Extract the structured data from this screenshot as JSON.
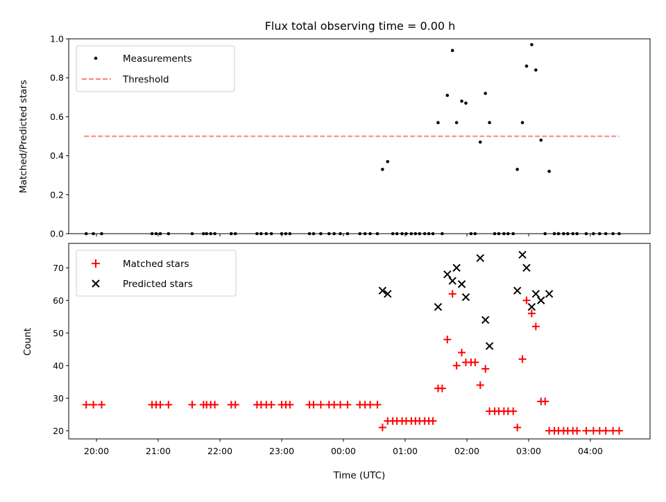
{
  "chart_data": [
    {
      "type": "scatter",
      "title": "Flux total observing time = 0.00 h",
      "ylabel": "Matched/Predicted stars",
      "xlabel": "",
      "xlim": [
        "19:33",
        "04:58"
      ],
      "ylim": [
        0,
        1.0
      ],
      "yticks": [
        "0.0",
        "0.2",
        "0.4",
        "0.6",
        "0.8",
        "1.0"
      ],
      "legend": "top-left",
      "series": [
        {
          "name": "Measurements",
          "color": "#000000",
          "marker": "dot",
          "points": [
            [
              "19:50",
              0
            ],
            [
              "19:57",
              0
            ],
            [
              "20:05",
              0
            ],
            [
              "20:54",
              0
            ],
            [
              "20:58",
              0
            ],
            [
              "21:02",
              0
            ],
            [
              "21:10",
              0
            ],
            [
              "21:33",
              0
            ],
            [
              "21:44",
              0
            ],
            [
              "21:47",
              0
            ],
            [
              "21:51",
              0
            ],
            [
              "21:55",
              0
            ],
            [
              "22:11",
              0
            ],
            [
              "22:15",
              0
            ],
            [
              "22:36",
              0
            ],
            [
              "22:40",
              0
            ],
            [
              "22:45",
              0
            ],
            [
              "22:50",
              0
            ],
            [
              "23:00",
              0
            ],
            [
              "23:04",
              0
            ],
            [
              "23:08",
              0
            ],
            [
              "23:27",
              0
            ],
            [
              "23:31",
              0
            ],
            [
              "23:38",
              0
            ],
            [
              "23:46",
              0
            ],
            [
              "23:51",
              0
            ],
            [
              "23:57",
              0
            ],
            [
              "00:04",
              0
            ],
            [
              "00:16",
              0
            ],
            [
              "00:21",
              0
            ],
            [
              "00:26",
              0
            ],
            [
              "00:33",
              0
            ],
            [
              "00:38",
              0.33
            ],
            [
              "00:43",
              0.37
            ],
            [
              "00:48",
              0
            ],
            [
              "00:52",
              0
            ],
            [
              "00:57",
              0
            ],
            [
              "01:01",
              0
            ],
            [
              "01:06",
              0
            ],
            [
              "01:10",
              0
            ],
            [
              "01:14",
              0
            ],
            [
              "01:19",
              0
            ],
            [
              "01:23",
              0
            ],
            [
              "01:27",
              0
            ],
            [
              "01:32",
              0.57
            ],
            [
              "01:36",
              0
            ],
            [
              "01:41",
              0.71
            ],
            [
              "01:46",
              0.94
            ],
            [
              "01:50",
              0.57
            ],
            [
              "01:55",
              0.68
            ],
            [
              "01:59",
              0.67
            ],
            [
              "02:04",
              0
            ],
            [
              "02:08",
              0
            ],
            [
              "02:13",
              0.47
            ],
            [
              "02:18",
              0.72
            ],
            [
              "02:22",
              0.57
            ],
            [
              "02:27",
              0
            ],
            [
              "02:31",
              0
            ],
            [
              "02:36",
              0
            ],
            [
              "02:40",
              0
            ],
            [
              "02:45",
              0
            ],
            [
              "02:49",
              0.33
            ],
            [
              "02:54",
              0.57
            ],
            [
              "02:58",
              0.86
            ],
            [
              "03:03",
              0.97
            ],
            [
              "03:07",
              0.84
            ],
            [
              "03:12",
              0.48
            ],
            [
              "03:16",
              0
            ],
            [
              "03:20",
              0.32
            ],
            [
              "03:25",
              0
            ],
            [
              "03:29",
              0
            ],
            [
              "03:34",
              0
            ],
            [
              "03:38",
              0
            ],
            [
              "03:43",
              0
            ],
            [
              "03:47",
              0
            ],
            [
              "03:56",
              0
            ],
            [
              "04:03",
              0
            ],
            [
              "04:09",
              0
            ],
            [
              "04:15",
              0
            ],
            [
              "04:22",
              0
            ],
            [
              "04:28",
              0
            ]
          ]
        },
        {
          "name": "Threshold",
          "color": "#ff7f7f",
          "style": "dashed",
          "points": [
            [
              "19:48",
              0.5
            ],
            [
              "04:28",
              0.5
            ]
          ]
        }
      ]
    },
    {
      "type": "scatter",
      "title": "",
      "xlabel": "Time (UTC)",
      "ylabel": "Count",
      "xlim": [
        "19:33",
        "04:58"
      ],
      "ylim": [
        17.5,
        77.5
      ],
      "yticks": [
        "20",
        "30",
        "40",
        "50",
        "60",
        "70"
      ],
      "xticks": [
        "20:00",
        "21:00",
        "22:00",
        "23:00",
        "00:00",
        "01:00",
        "02:00",
        "03:00",
        "04:00"
      ],
      "legend": "top-left",
      "series": [
        {
          "name": "Matched stars",
          "color": "#ff0000",
          "marker": "plus",
          "points": [
            [
              "19:50",
              28
            ],
            [
              "19:57",
              28
            ],
            [
              "20:05",
              28
            ],
            [
              "20:54",
              28
            ],
            [
              "20:58",
              28
            ],
            [
              "21:02",
              28
            ],
            [
              "21:10",
              28
            ],
            [
              "21:33",
              28
            ],
            [
              "21:44",
              28
            ],
            [
              "21:47",
              28
            ],
            [
              "21:51",
              28
            ],
            [
              "21:55",
              28
            ],
            [
              "22:11",
              28
            ],
            [
              "22:15",
              28
            ],
            [
              "22:36",
              28
            ],
            [
              "22:40",
              28
            ],
            [
              "22:45",
              28
            ],
            [
              "22:50",
              28
            ],
            [
              "23:00",
              28
            ],
            [
              "23:04",
              28
            ],
            [
              "23:08",
              28
            ],
            [
              "23:27",
              28
            ],
            [
              "23:31",
              28
            ],
            [
              "23:38",
              28
            ],
            [
              "23:46",
              28
            ],
            [
              "23:51",
              28
            ],
            [
              "23:57",
              28
            ],
            [
              "00:04",
              28
            ],
            [
              "00:16",
              28
            ],
            [
              "00:21",
              28
            ],
            [
              "00:26",
              28
            ],
            [
              "00:33",
              28
            ],
            [
              "00:38",
              21
            ],
            [
              "00:43",
              23
            ],
            [
              "00:48",
              23
            ],
            [
              "00:52",
              23
            ],
            [
              "00:57",
              23
            ],
            [
              "01:01",
              23
            ],
            [
              "01:06",
              23
            ],
            [
              "01:10",
              23
            ],
            [
              "01:14",
              23
            ],
            [
              "01:19",
              23
            ],
            [
              "01:23",
              23
            ],
            [
              "01:27",
              23
            ],
            [
              "01:32",
              33
            ],
            [
              "01:36",
              33
            ],
            [
              "01:41",
              48
            ],
            [
              "01:46",
              62
            ],
            [
              "01:50",
              40
            ],
            [
              "01:55",
              44
            ],
            [
              "01:59",
              41
            ],
            [
              "02:04",
              41
            ],
            [
              "02:08",
              41
            ],
            [
              "02:13",
              34
            ],
            [
              "02:18",
              39
            ],
            [
              "02:22",
              26
            ],
            [
              "02:27",
              26
            ],
            [
              "02:31",
              26
            ],
            [
              "02:36",
              26
            ],
            [
              "02:40",
              26
            ],
            [
              "02:45",
              26
            ],
            [
              "02:49",
              21
            ],
            [
              "02:54",
              42
            ],
            [
              "02:58",
              60
            ],
            [
              "03:03",
              56
            ],
            [
              "03:07",
              52
            ],
            [
              "03:12",
              29
            ],
            [
              "03:16",
              29
            ],
            [
              "03:20",
              20
            ],
            [
              "03:25",
              20
            ],
            [
              "03:29",
              20
            ],
            [
              "03:34",
              20
            ],
            [
              "03:38",
              20
            ],
            [
              "03:43",
              20
            ],
            [
              "03:47",
              20
            ],
            [
              "03:56",
              20
            ],
            [
              "04:03",
              20
            ],
            [
              "04:09",
              20
            ],
            [
              "04:15",
              20
            ],
            [
              "04:22",
              20
            ],
            [
              "04:28",
              20
            ]
          ]
        },
        {
          "name": "Predicted stars",
          "color": "#000000",
          "marker": "x",
          "points": [
            [
              "00:38",
              63
            ],
            [
              "00:43",
              62
            ],
            [
              "01:32",
              58
            ],
            [
              "01:41",
              68
            ],
            [
              "01:46",
              66
            ],
            [
              "01:50",
              70
            ],
            [
              "01:55",
              65
            ],
            [
              "01:59",
              61
            ],
            [
              "02:13",
              73
            ],
            [
              "02:18",
              54
            ],
            [
              "02:22",
              46
            ],
            [
              "02:49",
              63
            ],
            [
              "02:54",
              74
            ],
            [
              "02:58",
              70
            ],
            [
              "03:03",
              58
            ],
            [
              "03:07",
              62
            ],
            [
              "03:12",
              60
            ],
            [
              "03:20",
              62
            ]
          ]
        }
      ]
    }
  ]
}
